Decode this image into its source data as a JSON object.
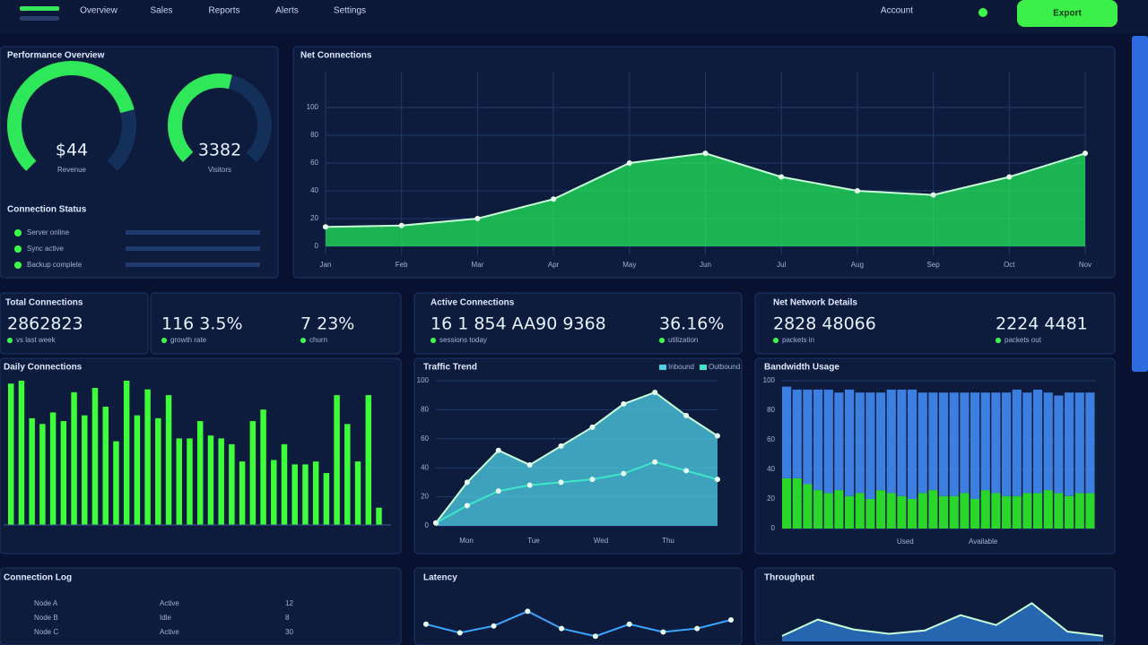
{
  "topbar": {
    "nav": [
      "Overview",
      "Sales",
      "Reports",
      "Alerts",
      "Settings"
    ],
    "user": "Account",
    "button": "Export"
  },
  "gauges": {
    "title": "Performance Overview",
    "items": [
      {
        "value": 78,
        "label": "$44",
        "caption": "Revenue"
      },
      {
        "value": 55,
        "label": "3382",
        "caption": "Visitors"
      }
    ]
  },
  "status": {
    "title": "Connection Status",
    "rows": [
      "Server online",
      "Sync active",
      "Backup complete"
    ]
  },
  "main": {
    "type": "area",
    "title": "Net Connections",
    "color": "#22e85a",
    "categories": [
      "Jan",
      "Feb",
      "Mar",
      "Apr",
      "May",
      "Jun",
      "Jul",
      "Aug",
      "Sep",
      "Oct",
      "Nov"
    ],
    "values": [
      14,
      15,
      20,
      34,
      60,
      67,
      50,
      40,
      37,
      50,
      67
    ],
    "ylim": [
      0,
      100
    ],
    "yticks": [
      0,
      20,
      40,
      60,
      80,
      100
    ],
    "grid": true
  },
  "kpis": [
    {
      "title": "Total Connections",
      "items": [
        {
          "value": "2862823",
          "caption": "vs last week"
        },
        {
          "value": "116 3.5%",
          "caption": "growth rate"
        },
        {
          "value": "7 23%",
          "caption": "churn"
        }
      ]
    },
    {
      "title": "Active Connections",
      "items": [
        {
          "value": "16 1 854 AA90 9368",
          "caption": "sessions today"
        },
        {
          "value": "36.16%",
          "caption": "utilization"
        }
      ]
    },
    {
      "title": "Net Network Details",
      "items": [
        {
          "value": "2828 48066",
          "caption": "packets in"
        },
        {
          "value": "2224 4481",
          "caption": "packets out"
        }
      ]
    }
  ],
  "bars": {
    "type": "bar",
    "title": "Daily Connections",
    "color": "#3dff3a",
    "values": [
      98,
      100,
      74,
      70,
      78,
      72,
      92,
      76,
      95,
      82,
      58,
      100,
      76,
      94,
      74,
      90,
      60,
      60,
      72,
      62,
      60,
      56,
      44,
      72,
      80,
      45,
      56,
      42,
      42,
      44,
      36,
      90,
      70,
      44,
      90,
      12
    ],
    "ylim": [
      0,
      100
    ]
  },
  "lines": {
    "type": "line",
    "title": "Traffic Trend",
    "categories": [
      "Mon",
      "Tue",
      "Wed",
      "Thu"
    ],
    "ylim": [
      0,
      100
    ],
    "yticks": [
      0,
      20,
      40,
      60,
      80,
      100
    ],
    "series": [
      {
        "name": "Inbound",
        "color": "#4fd0e8",
        "values": [
          2,
          30,
          52,
          42,
          55,
          68,
          84,
          92,
          76,
          62
        ]
      },
      {
        "name": "Outbound",
        "color": "#3ee6c8",
        "values": [
          2,
          14,
          24,
          28,
          30,
          32,
          36,
          44,
          38,
          32
        ]
      }
    ]
  },
  "stacked": {
    "type": "stacked",
    "title": "Bandwidth Usage",
    "ylim": [
      0,
      100
    ],
    "yticks": [
      0,
      20,
      40,
      60,
      80,
      100
    ],
    "series": [
      {
        "name": "Used",
        "color": "#2ad62a",
        "values": [
          34,
          34,
          30,
          26,
          24,
          26,
          22,
          24,
          20,
          26,
          24,
          22,
          20,
          24,
          26,
          22,
          22,
          24,
          20,
          26,
          24,
          22,
          22,
          24,
          24,
          26,
          24,
          22,
          24,
          24
        ]
      },
      {
        "name": "Available",
        "color": "#3d7fe0",
        "values": [
          62,
          60,
          64,
          68,
          70,
          66,
          72,
          68,
          72,
          66,
          70,
          72,
          74,
          68,
          66,
          70,
          70,
          68,
          72,
          66,
          68,
          70,
          72,
          68,
          70,
          66,
          66,
          70,
          68,
          68
        ]
      }
    ]
  },
  "table": {
    "title": "Connection Log",
    "rows": [
      [
        "Node A",
        "Active",
        "12"
      ],
      [
        "Node B",
        "Idle",
        "8"
      ],
      [
        "Node C",
        "Active",
        "30"
      ]
    ]
  },
  "wave1": {
    "type": "line",
    "title": "Latency",
    "color": "#3aa6ff",
    "values": [
      40,
      20,
      36,
      70,
      30,
      12,
      40,
      22,
      30,
      50
    ],
    "ylim": [
      0,
      100
    ]
  },
  "wave2": {
    "type": "area",
    "title": "Throughput",
    "color": "#2f7fd6",
    "values": [
      10,
      40,
      22,
      14,
      20,
      48,
      30,
      70,
      18,
      10
    ],
    "ylim": [
      0,
      100
    ]
  }
}
